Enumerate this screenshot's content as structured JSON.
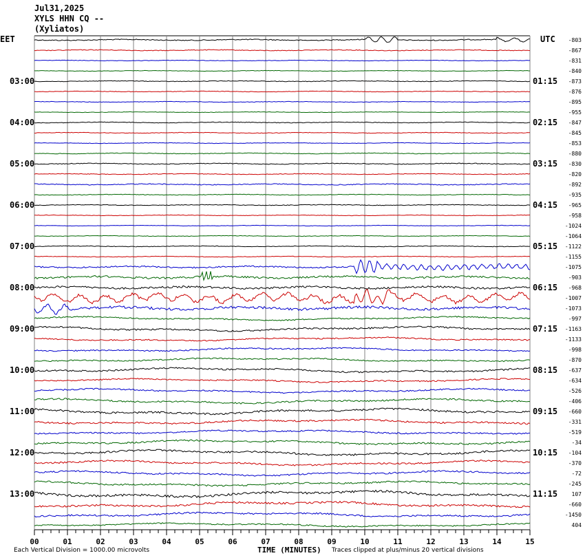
{
  "header": {
    "date": "Jul31,2025",
    "station": "XYLS HHN CQ --",
    "location": "(Xyliatos)"
  },
  "left_tz": "EET",
  "right_tz": "UTC",
  "footer": {
    "division": "Each Vertical Division = 1000.00 microvolts",
    "xlabel": "TIME (MINUTES)",
    "clip": "Traces clipped at plus/minus 20 vertical divisions"
  },
  "chart_data": {
    "type": "line",
    "title": "",
    "xlabel": "TIME (MINUTES)",
    "ylabel": "",
    "xlim": [
      0,
      15
    ],
    "x_ticks": [
      "00",
      "01",
      "02",
      "03",
      "04",
      "05",
      "06",
      "07",
      "08",
      "09",
      "10",
      "11",
      "12",
      "13",
      "14",
      "15"
    ],
    "grid": true,
    "trace_colors": [
      "#000000",
      "#cc0000",
      "#0000cc",
      "#006600"
    ],
    "left_time_labels": [
      "03:00",
      "04:00",
      "05:00",
      "06:00",
      "07:00",
      "08:00",
      "09:00",
      "10:00",
      "11:00",
      "12:00",
      "13:00"
    ],
    "right_time_labels": [
      "01:15",
      "02:15",
      "03:15",
      "04:15",
      "05:15",
      "06:15",
      "07:15",
      "08:15",
      "09:15",
      "10:15",
      "11:15"
    ],
    "trace_offsets": [
      "-803",
      "-867",
      "-831",
      "-840",
      "-873",
      "-876",
      "-895",
      "-955",
      "-847",
      "-845",
      "-853",
      "-880",
      "-830",
      "-820",
      "-892",
      "-935",
      "-965",
      "-958",
      "-1024",
      "-1064",
      "-1122",
      "-1155",
      "-1075",
      "-903",
      "-968",
      "-1007",
      "-1073",
      "-997",
      "-1163",
      "-1133",
      "-998",
      "-870",
      "-637",
      "-634",
      "-526",
      "-406",
      "-660",
      "-331",
      "-519",
      "-34",
      "-104",
      "-370",
      "-72",
      "-245",
      "107",
      "-660",
      "-1450",
      "404"
    ],
    "trace_amplitudes": [
      1.5,
      1.2,
      0.8,
      0.7,
      1,
      0.9,
      0.8,
      0.7,
      1,
      0.9,
      0.8,
      1,
      1.2,
      1,
      1.4,
      0.9,
      1,
      0.8,
      0.7,
      0.8,
      1,
      0.9,
      2.2,
      3,
      3,
      5,
      4,
      2,
      2.5,
      2,
      2,
      2,
      2.5,
      2,
      2.2,
      2.5,
      3,
      2.5,
      2.2,
      2.5,
      3,
      2.5,
      2.5,
      2.5,
      3.5,
      3,
      2.5,
      2
    ]
  }
}
